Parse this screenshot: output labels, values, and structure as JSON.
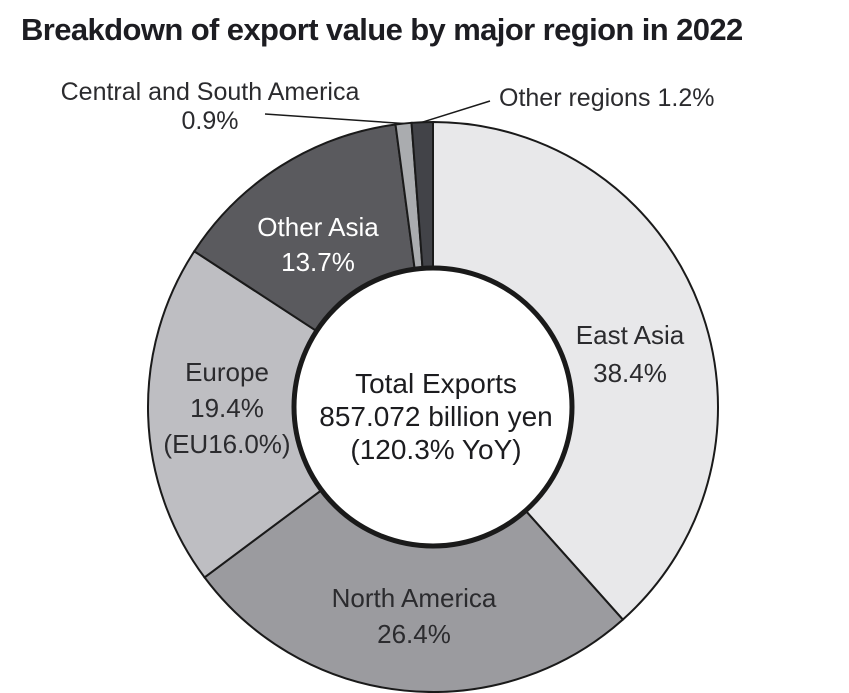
{
  "title": "Breakdown of export value by major region in 2022",
  "chart_data": {
    "type": "pie",
    "subtype": "donut",
    "title": "Breakdown of export value by major region in 2022",
    "unit": "%",
    "start_angle_deg": 0,
    "direction": "clockwise",
    "outline_color": "#1a1a1a",
    "inner_hole": {
      "fill": "#ffffff",
      "ring_color": "#1a1a1a"
    },
    "segments": [
      {
        "label": "East Asia",
        "value": 38.4,
        "value_pct": "38.4%",
        "color": "#e8e8ea",
        "label_color": "#2b2b2e",
        "callout": false
      },
      {
        "label": "North America",
        "value": 26.4,
        "value_pct": "26.4%",
        "color": "#9b9b9f",
        "label_color": "#2b2b2e",
        "callout": false
      },
      {
        "label": "Europe",
        "value": 19.4,
        "value_pct": "19.4%",
        "sub_label": "(EU16.0%)",
        "color": "#bebec2",
        "label_color": "#2b2b2e",
        "callout": false
      },
      {
        "label": "Other Asia",
        "value": 13.7,
        "value_pct": "13.7%",
        "color": "#5a5a5e",
        "label_color": "#ffffff",
        "callout": false
      },
      {
        "label": "Central and South America",
        "value": 0.9,
        "value_pct": "0.9%",
        "color": "#aaacaf",
        "label_color": "#2b2b2e",
        "callout": true
      },
      {
        "label": "Other regions",
        "value": 1.2,
        "value_pct": "1.2%",
        "color": "#424348",
        "label_color": "#2b2b2e",
        "callout": true
      }
    ],
    "center": {
      "line1": "Total Exports",
      "line2": "857.072 billion yen",
      "line3": "(120.3% YoY)"
    }
  }
}
